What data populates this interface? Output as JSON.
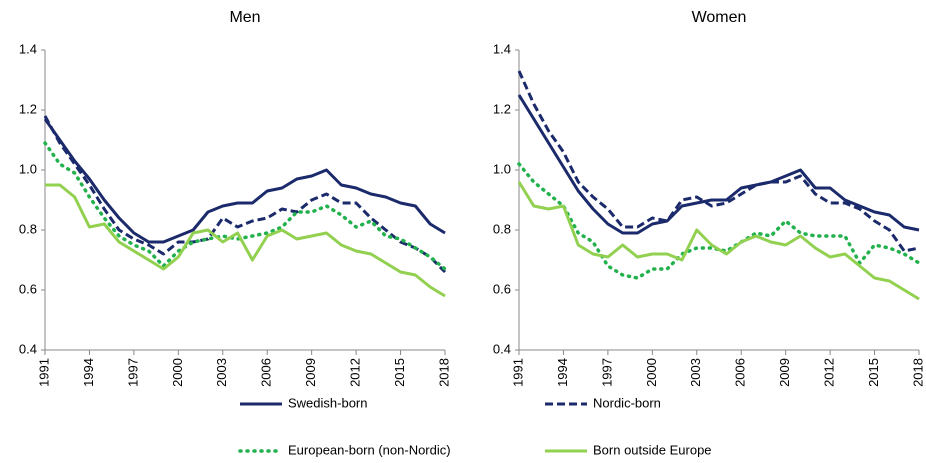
{
  "chart_data": [
    {
      "type": "line",
      "title": "Men",
      "x": [
        1991,
        1992,
        1993,
        1994,
        1995,
        1996,
        1997,
        1998,
        1999,
        2000,
        2001,
        2002,
        2003,
        2004,
        2005,
        2006,
        2007,
        2008,
        2009,
        2010,
        2011,
        2012,
        2013,
        2014,
        2015,
        2016,
        2017,
        2018
      ],
      "xlim": [
        1991,
        2018
      ],
      "xticks": [
        1991,
        1994,
        1997,
        2000,
        2003,
        2006,
        2009,
        2012,
        2015,
        2018
      ],
      "ylim": [
        0.4,
        1.4
      ],
      "yticks": [
        0.4,
        0.6,
        0.8,
        {
          "value": 1,
          "label": "1.0"
        },
        1.2,
        1.4
      ],
      "series": [
        {
          "name": "Swedish-born",
          "color": "#1b2a6b",
          "dash": "solid",
          "values": [
            1.17,
            1.1,
            1.03,
            0.97,
            0.9,
            0.84,
            0.79,
            0.76,
            0.76,
            0.78,
            0.8,
            0.86,
            0.88,
            0.89,
            0.89,
            0.93,
            0.94,
            0.97,
            0.98,
            1.0,
            0.95,
            0.94,
            0.92,
            0.91,
            0.89,
            0.88,
            0.82,
            0.79
          ]
        },
        {
          "name": "Nordic-born",
          "color": "#1b2a6b",
          "dash": "dashed",
          "values": [
            1.18,
            1.09,
            1.02,
            0.95,
            0.87,
            0.8,
            0.77,
            0.75,
            0.72,
            0.76,
            0.76,
            0.77,
            0.84,
            0.81,
            0.83,
            0.84,
            0.87,
            0.86,
            0.9,
            0.92,
            0.89,
            0.89,
            0.84,
            0.8,
            0.76,
            0.74,
            0.71,
            0.66
          ]
        },
        {
          "name": "European-born (non-Nordic)",
          "color": "#22b14c",
          "dash": "dotted",
          "values": [
            1.09,
            1.02,
            0.99,
            0.91,
            0.84,
            0.78,
            0.75,
            0.73,
            0.68,
            0.73,
            0.76,
            0.77,
            0.78,
            0.77,
            0.78,
            0.79,
            0.81,
            0.86,
            0.86,
            0.88,
            0.85,
            0.81,
            0.83,
            0.78,
            0.77,
            0.74,
            0.71,
            0.67
          ]
        },
        {
          "name": "Born outside Europe",
          "color": "#92d050",
          "dash": "solid",
          "values": [
            0.95,
            0.95,
            0.91,
            0.81,
            0.82,
            0.76,
            0.73,
            0.7,
            0.67,
            0.71,
            0.79,
            0.8,
            0.76,
            0.79,
            0.7,
            0.78,
            0.8,
            0.77,
            0.78,
            0.79,
            0.75,
            0.73,
            0.72,
            0.69,
            0.66,
            0.65,
            0.61,
            0.58
          ]
        }
      ]
    },
    {
      "type": "line",
      "title": "Women",
      "x": [
        1991,
        1992,
        1993,
        1994,
        1995,
        1996,
        1997,
        1998,
        1999,
        2000,
        2001,
        2002,
        2003,
        2004,
        2005,
        2006,
        2007,
        2008,
        2009,
        2010,
        2011,
        2012,
        2013,
        2014,
        2015,
        2016,
        2017,
        2018
      ],
      "xlim": [
        1991,
        2018
      ],
      "xticks": [
        1991,
        1994,
        1997,
        2000,
        2003,
        2006,
        2009,
        2012,
        2015,
        2018
      ],
      "ylim": [
        0.4,
        1.4
      ],
      "yticks": [
        0.4,
        0.6,
        0.8,
        {
          "value": 1,
          "label": "1.0"
        },
        1.2,
        1.4
      ],
      "series": [
        {
          "name": "Swedish-born",
          "color": "#1b2a6b",
          "dash": "solid",
          "values": [
            1.25,
            1.17,
            1.09,
            1.01,
            0.93,
            0.87,
            0.82,
            0.79,
            0.79,
            0.82,
            0.83,
            0.88,
            0.89,
            0.9,
            0.9,
            0.94,
            0.95,
            0.96,
            0.98,
            1.0,
            0.94,
            0.94,
            0.9,
            0.88,
            0.86,
            0.85,
            0.81,
            0.8
          ]
        },
        {
          "name": "Nordic-born",
          "color": "#1b2a6b",
          "dash": "dashed",
          "values": [
            1.33,
            1.22,
            1.13,
            1.06,
            0.96,
            0.91,
            0.87,
            0.81,
            0.81,
            0.84,
            0.83,
            0.9,
            0.91,
            0.88,
            0.89,
            0.92,
            0.95,
            0.96,
            0.96,
            0.98,
            0.92,
            0.89,
            0.89,
            0.87,
            0.83,
            0.8,
            0.73,
            0.74
          ]
        },
        {
          "name": "European-born (non-Nordic)",
          "color": "#22b14c",
          "dash": "dotted",
          "values": [
            1.02,
            0.96,
            0.92,
            0.88,
            0.79,
            0.76,
            0.68,
            0.65,
            0.64,
            0.67,
            0.67,
            0.72,
            0.74,
            0.74,
            0.73,
            0.76,
            0.79,
            0.78,
            0.83,
            0.79,
            0.78,
            0.78,
            0.78,
            0.69,
            0.75,
            0.74,
            0.72,
            0.69
          ]
        },
        {
          "name": "Born outside Europe",
          "color": "#92d050",
          "dash": "solid",
          "values": [
            0.96,
            0.88,
            0.87,
            0.88,
            0.75,
            0.72,
            0.71,
            0.75,
            0.71,
            0.72,
            0.72,
            0.7,
            0.8,
            0.75,
            0.72,
            0.76,
            0.78,
            0.76,
            0.75,
            0.78,
            0.74,
            0.71,
            0.72,
            0.68,
            0.64,
            0.63,
            0.6,
            0.57
          ]
        }
      ]
    }
  ]
}
